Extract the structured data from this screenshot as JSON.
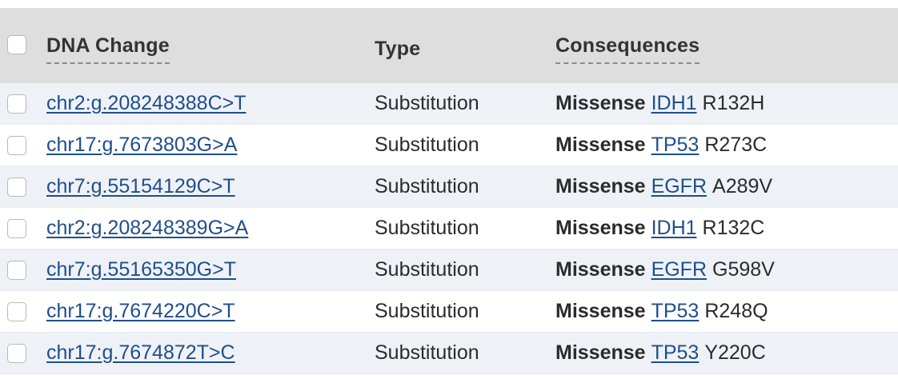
{
  "header": {
    "dna_change": "DNA Change",
    "type": "Type",
    "consequences": "Consequences"
  },
  "rows": [
    {
      "dna": "chr2:g.208248388C>T",
      "type": "Substitution",
      "consequence": "Missense",
      "gene": "IDH1",
      "aa": "R132H"
    },
    {
      "dna": "chr17:g.7673803G>A",
      "type": "Substitution",
      "consequence": "Missense",
      "gene": "TP53",
      "aa": "R273C"
    },
    {
      "dna": "chr7:g.55154129C>T",
      "type": "Substitution",
      "consequence": "Missense",
      "gene": "EGFR",
      "aa": "A289V"
    },
    {
      "dna": "chr2:g.208248389G>A",
      "type": "Substitution",
      "consequence": "Missense",
      "gene": "IDH1",
      "aa": "R132C"
    },
    {
      "dna": "chr7:g.55165350G>T",
      "type": "Substitution",
      "consequence": "Missense",
      "gene": "EGFR",
      "aa": "G598V"
    },
    {
      "dna": "chr17:g.7674220C>T",
      "type": "Substitution",
      "consequence": "Missense",
      "gene": "TP53",
      "aa": "R248Q"
    },
    {
      "dna": "chr17:g.7674872T>C",
      "type": "Substitution",
      "consequence": "Missense",
      "gene": "TP53",
      "aa": "Y220C"
    }
  ],
  "colors": {
    "header_bg": "#dedede",
    "row_stripe": "#eef2f7",
    "link": "#1f4e8c"
  }
}
